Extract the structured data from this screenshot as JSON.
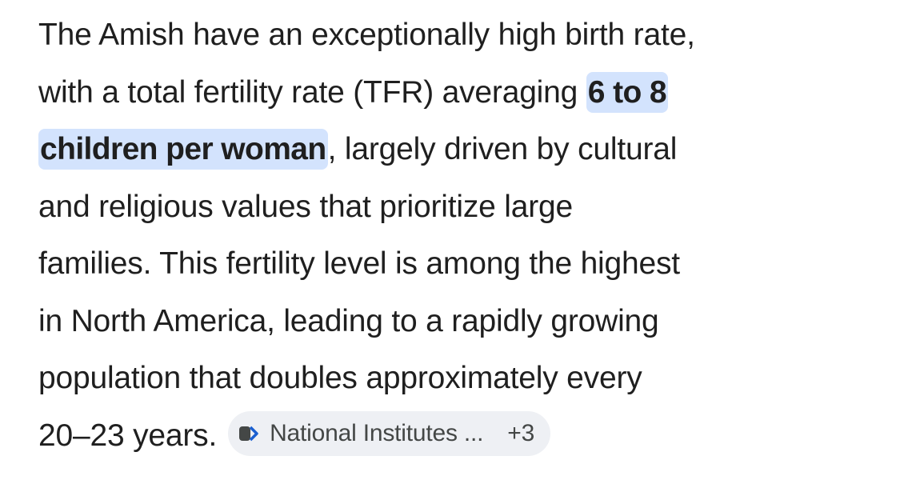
{
  "paragraph": {
    "lines": [
      [
        {
          "text": "The Amish have an exceptionally high birth rate,",
          "highlighted": false
        }
      ],
      [
        {
          "text": "with a total fertility rate (TFR) averaging ",
          "highlighted": false
        },
        {
          "text": "6 to 8",
          "highlighted": true
        }
      ],
      [
        {
          "text": "children per woman",
          "highlighted": true
        },
        {
          "text": ", largely driven by cultural",
          "highlighted": false
        }
      ],
      [
        {
          "text": "and religious values that prioritize large",
          "highlighted": false
        }
      ],
      [
        {
          "text": "families. This fertility level is among the highest",
          "highlighted": false
        }
      ],
      [
        {
          "text": "in North America, leading to a rapidly growing",
          "highlighted": false
        }
      ],
      [
        {
          "text": "population that doubles approximately every",
          "highlighted": false
        }
      ],
      [
        {
          "text": "20–23 years.",
          "highlighted": false
        }
      ]
    ]
  },
  "citation": {
    "source": "National Institutes ...",
    "more": "+3"
  }
}
